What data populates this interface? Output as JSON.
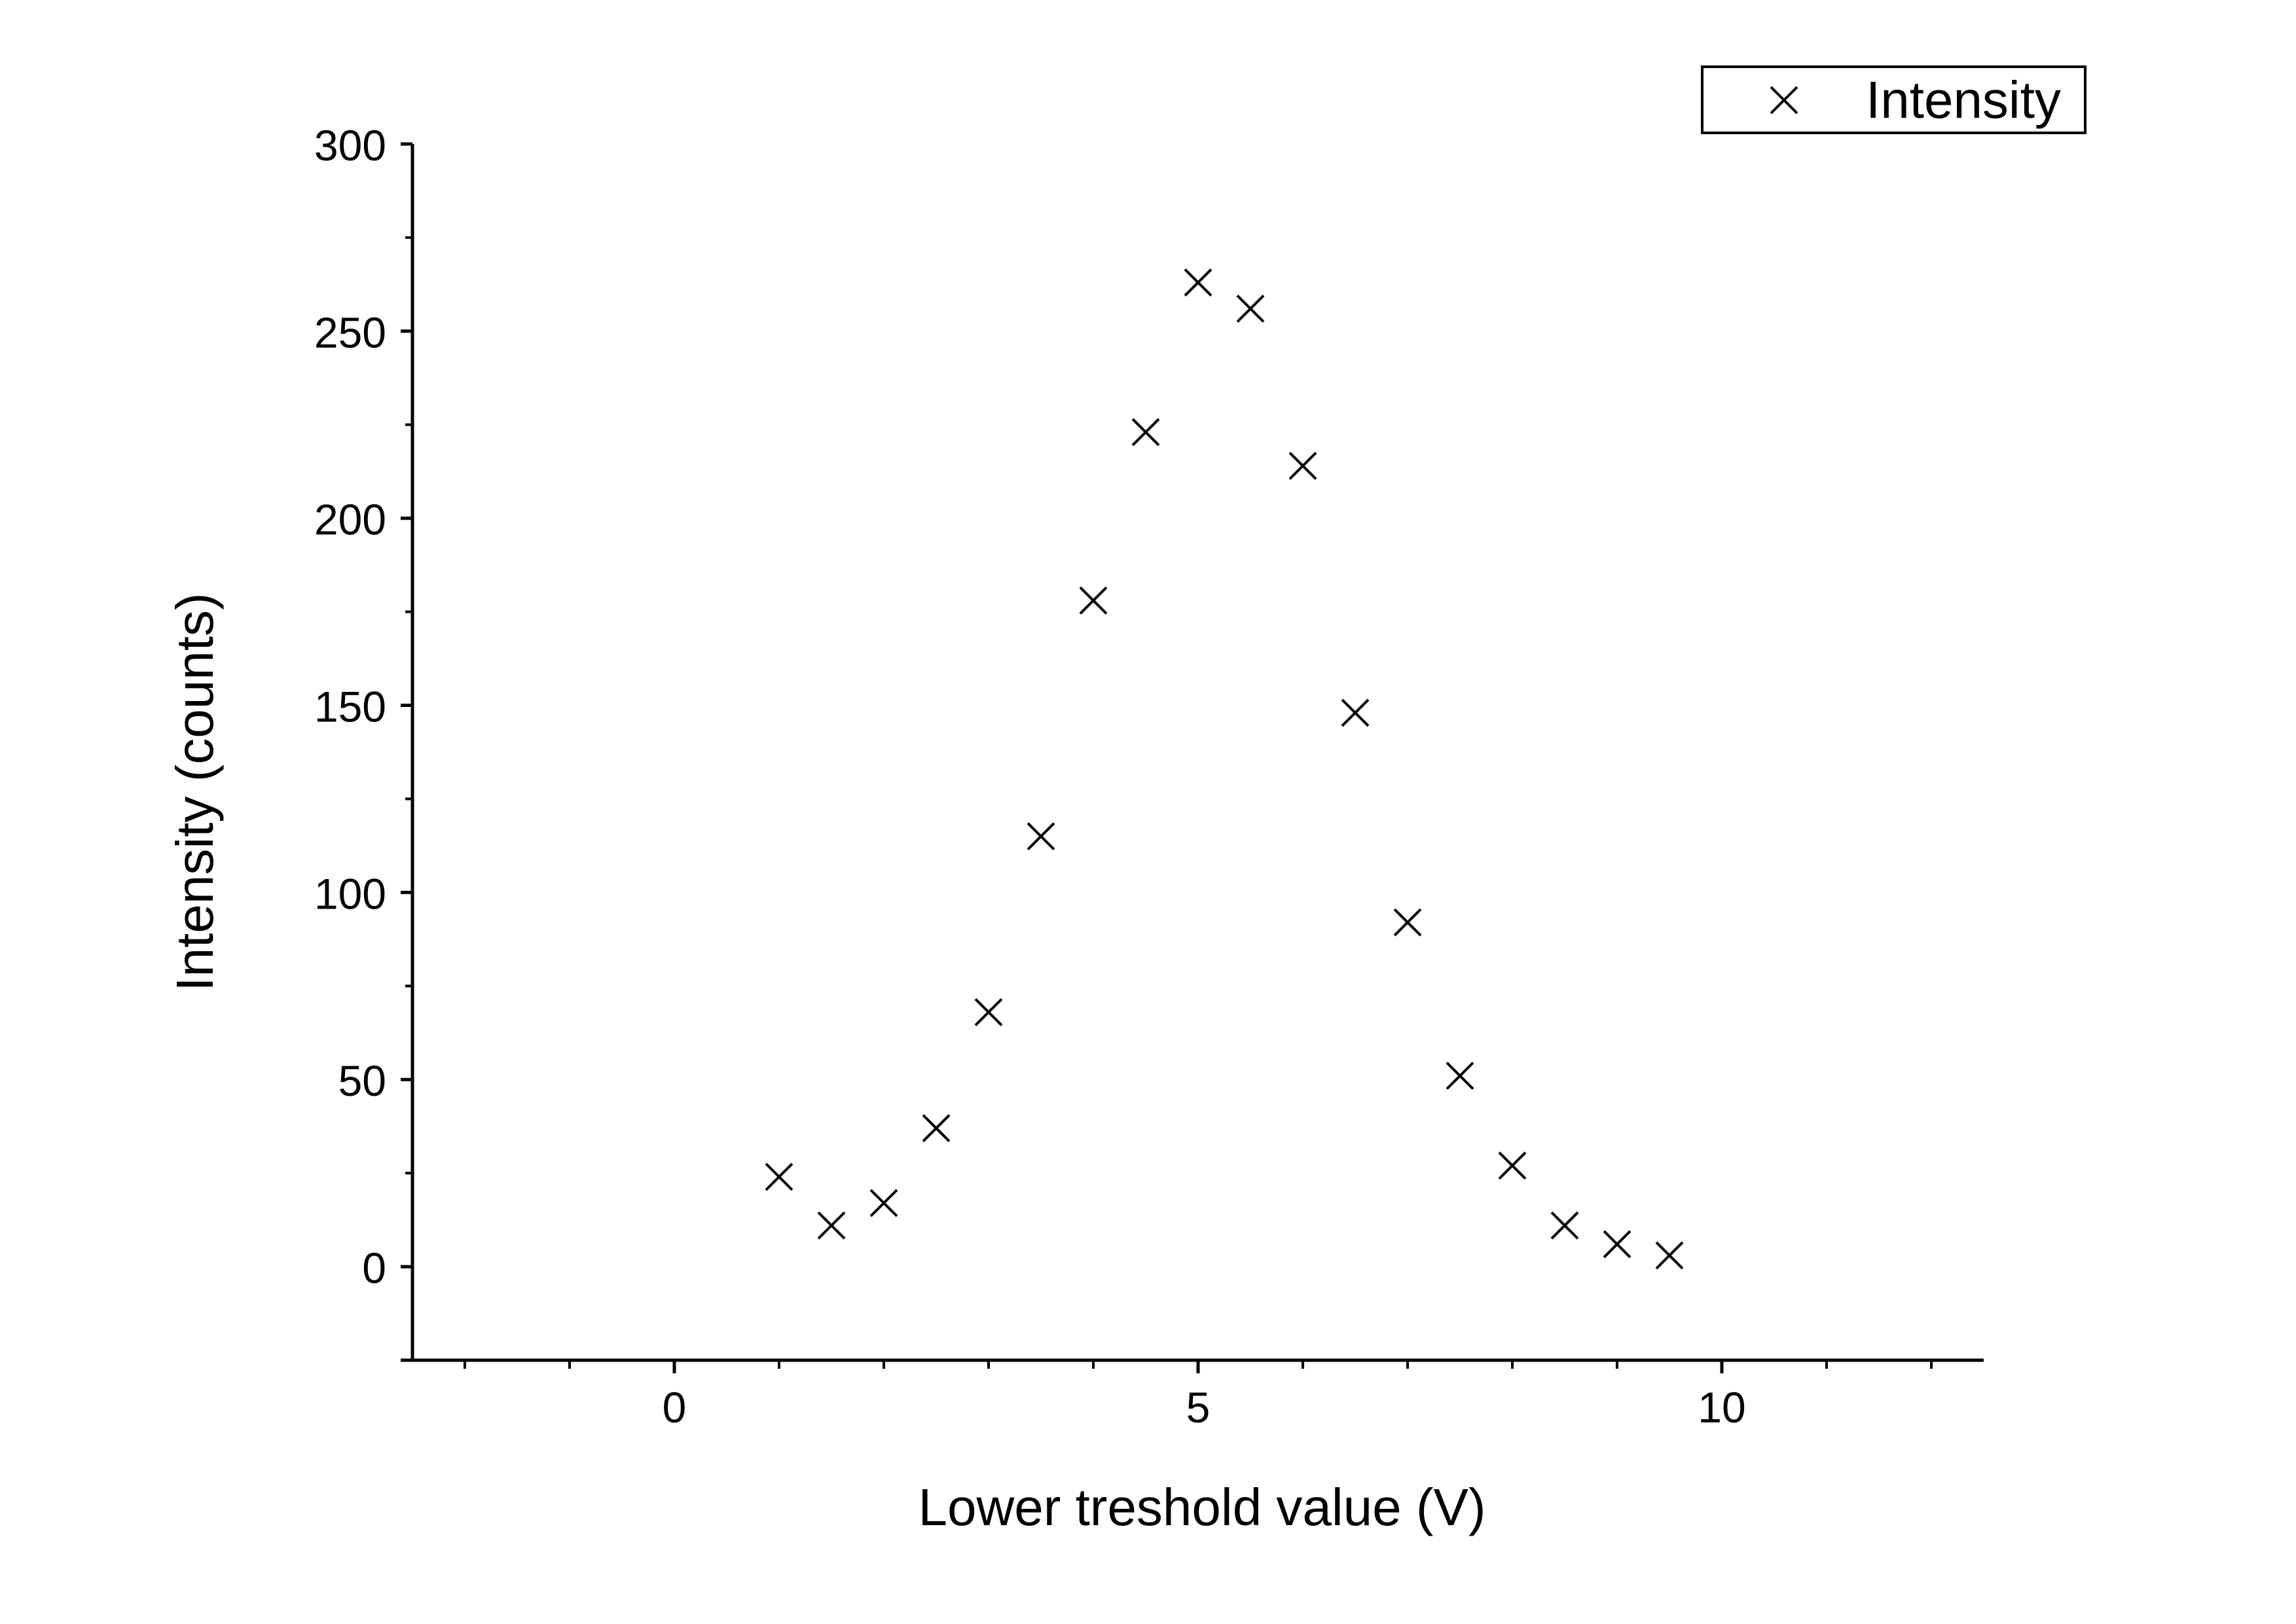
{
  "chart_data": {
    "type": "scatter",
    "title": "",
    "xlabel": "Lower treshold value (V)",
    "ylabel": "Intensity (counts)",
    "xlim": [
      -2.5,
      12.5
    ],
    "ylim": [
      -25,
      300
    ],
    "x_ticks": [
      0,
      5,
      10
    ],
    "y_ticks": [
      0,
      50,
      100,
      150,
      200,
      250,
      300
    ],
    "grid": false,
    "legend_position": "top-right",
    "marker": "x",
    "series": [
      {
        "name": "Intensity",
        "color": "#000000",
        "x": [
          1,
          1.5,
          2,
          2.5,
          3,
          3.5,
          4,
          4.5,
          5,
          5.5,
          6,
          6.5,
          7,
          7.5,
          8,
          8.5,
          9,
          9.5
        ],
        "y": [
          24,
          11,
          17,
          37,
          68,
          115,
          178,
          223,
          263,
          256,
          214,
          148,
          92,
          51,
          27,
          11,
          6,
          3
        ]
      }
    ]
  }
}
